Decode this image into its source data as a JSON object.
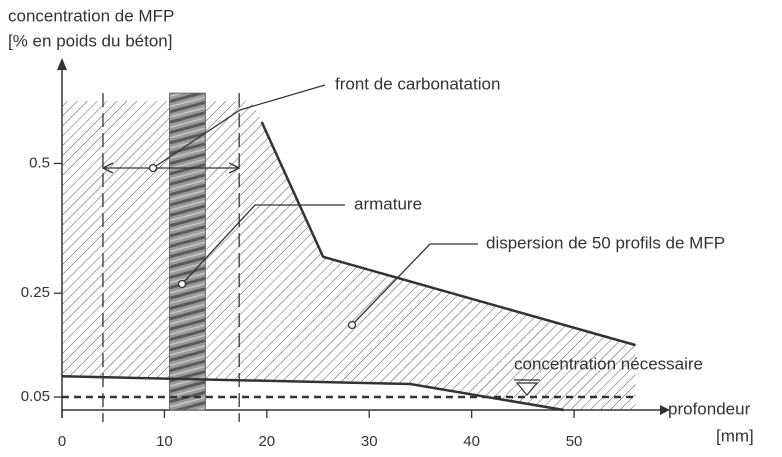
{
  "chart_data": {
    "type": "envelope",
    "y_label": "concentration de MFP",
    "y_label_unit": "[% en poids du béton]",
    "x_label": "profondeur",
    "x_label_unit": "[mm]",
    "xlim": [
      0,
      58
    ],
    "xticks": [
      0,
      10,
      20,
      30,
      40,
      50
    ],
    "ylim": [
      0.025,
      0.68
    ],
    "yticks": [
      0.05,
      0.25,
      0.5
    ],
    "hatch_top": 0.62,
    "series": [
      {
        "color": "#333333",
        "x": [
          19.5,
          25.5,
          56
        ],
        "values": [
          0.58,
          0.32,
          0.15
        ]
      },
      {
        "color": "#333333",
        "x": [
          0,
          34,
          49
        ],
        "values": [
          0.09,
          0.075,
          0.025
        ]
      }
    ],
    "threshold": 0.05,
    "carbonation_front": [
      4,
      17.3
    ],
    "rebar": [
      10.5,
      14
    ],
    "annotations": [
      "front de carbonatation",
      "armature",
      "dispersion de 50 profils de MFP",
      "concentration nécessaire"
    ]
  }
}
